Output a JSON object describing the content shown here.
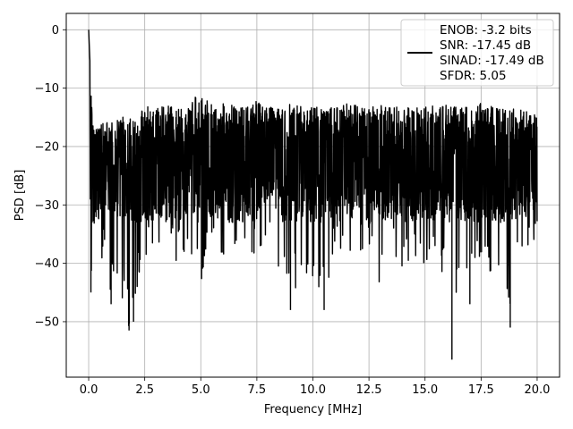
{
  "chart_data": {
    "type": "line",
    "title": "",
    "xlabel": "Frequency [MHz]",
    "ylabel": "PSD [dB]",
    "xlim": [
      -1.0,
      21.0
    ],
    "ylim": [
      -59.5,
      2.8
    ],
    "grid": true,
    "legend_position": "top-right",
    "line_color": "#000000",
    "x_ticks": [
      0.0,
      2.5,
      5.0,
      7.5,
      10.0,
      12.5,
      15.0,
      17.5,
      20.0
    ],
    "x_tick_labels": [
      "0.0",
      "2.5",
      "5.0",
      "7.5",
      "10.0",
      "12.5",
      "15.0",
      "17.5",
      "20.0"
    ],
    "y_ticks": [
      0,
      -10,
      -20,
      -30,
      -40,
      -50
    ],
    "y_tick_labels": [
      "0",
      "−10",
      "−20",
      "−30",
      "−40",
      "−50"
    ],
    "legend": [
      "ENOB: -3.2 bits",
      "SNR: -17.45 dB",
      "SINAD: -17.49 dB",
      "SFDR: 5.05"
    ],
    "series": [
      {
        "x": [
          0.0,
          0.05,
          0.1,
          0.15,
          0.2,
          0.3,
          0.5,
          0.8,
          1.0,
          1.2,
          1.5,
          1.8,
          2.0,
          2.2,
          2.5,
          3.0,
          3.5,
          4.0,
          4.5,
          5.0,
          5.5,
          6.0,
          6.5,
          7.0,
          7.5,
          8.0,
          8.5,
          9.0,
          9.5,
          10.0,
          10.5,
          11.0,
          11.5,
          12.0,
          12.5,
          13.0,
          13.5,
          14.0,
          14.5,
          15.0,
          15.5,
          16.0,
          16.2,
          16.5,
          17.0,
          17.5,
          18.0,
          18.5,
          18.8,
          19.0,
          19.5,
          20.0
        ],
        "upper": [
          0.0,
          -5.0,
          -8.0,
          -15.0,
          -16.0,
          -17.0,
          -16.0,
          -15.5,
          -16.0,
          -15.0,
          -15.0,
          -14.5,
          -14.0,
          -14.5,
          -13.0,
          -13.5,
          -13.0,
          -13.5,
          -13.0,
          -10.0,
          -13.0,
          -12.5,
          -13.0,
          -13.5,
          -12.0,
          -13.0,
          -13.5,
          -12.5,
          -13.0,
          -13.0,
          -13.5,
          -13.0,
          -12.5,
          -13.0,
          -13.5,
          -12.5,
          -13.0,
          -13.0,
          -13.5,
          -13.0,
          -13.0,
          -12.5,
          -13.0,
          -13.0,
          -13.0,
          -12.5,
          -13.0,
          -13.5,
          -13.0,
          -13.5,
          -14.0,
          -14.5
        ],
        "median": [
          0.0,
          -18.0,
          -22.0,
          -23.0,
          -23.0,
          -23.5,
          -23.0,
          -23.0,
          -23.0,
          -23.0,
          -23.5,
          -23.0,
          -23.0,
          -23.0,
          -23.0,
          -22.5,
          -23.0,
          -23.0,
          -22.5,
          -22.5,
          -23.0,
          -23.0,
          -23.0,
          -22.5,
          -23.0,
          -23.0,
          -22.5,
          -23.0,
          -23.0,
          -23.0,
          -22.5,
          -23.0,
          -23.0,
          -23.0,
          -22.5,
          -23.0,
          -23.0,
          -23.0,
          -22.5,
          -23.0,
          -23.0,
          -23.0,
          -23.0,
          -22.5,
          -23.0,
          -23.0,
          -23.0,
          -22.5,
          -23.0,
          -23.0,
          -23.0,
          -23.0
        ],
        "lower": [
          -23.0,
          -30.0,
          -45.0,
          -36.0,
          -35.0,
          -36.0,
          -40.0,
          -37.0,
          -47.0,
          -43.0,
          -46.0,
          -51.5,
          -50.0,
          -44.0,
          -39.0,
          -37.0,
          -38.0,
          -40.0,
          -41.0,
          -43.0,
          -39.0,
          -40.0,
          -37.0,
          -39.0,
          -40.0,
          -42.0,
          -44.0,
          -48.0,
          -41.0,
          -44.0,
          -48.0,
          -38.0,
          -40.0,
          -39.0,
          -37.0,
          -44.0,
          -38.0,
          -41.0,
          -39.0,
          -40.0,
          -41.0,
          -44.0,
          -56.5,
          -44.0,
          -47.0,
          -40.0,
          -42.0,
          -44.0,
          -51.0,
          -42.0,
          -38.0,
          -36.0
        ]
      }
    ]
  }
}
